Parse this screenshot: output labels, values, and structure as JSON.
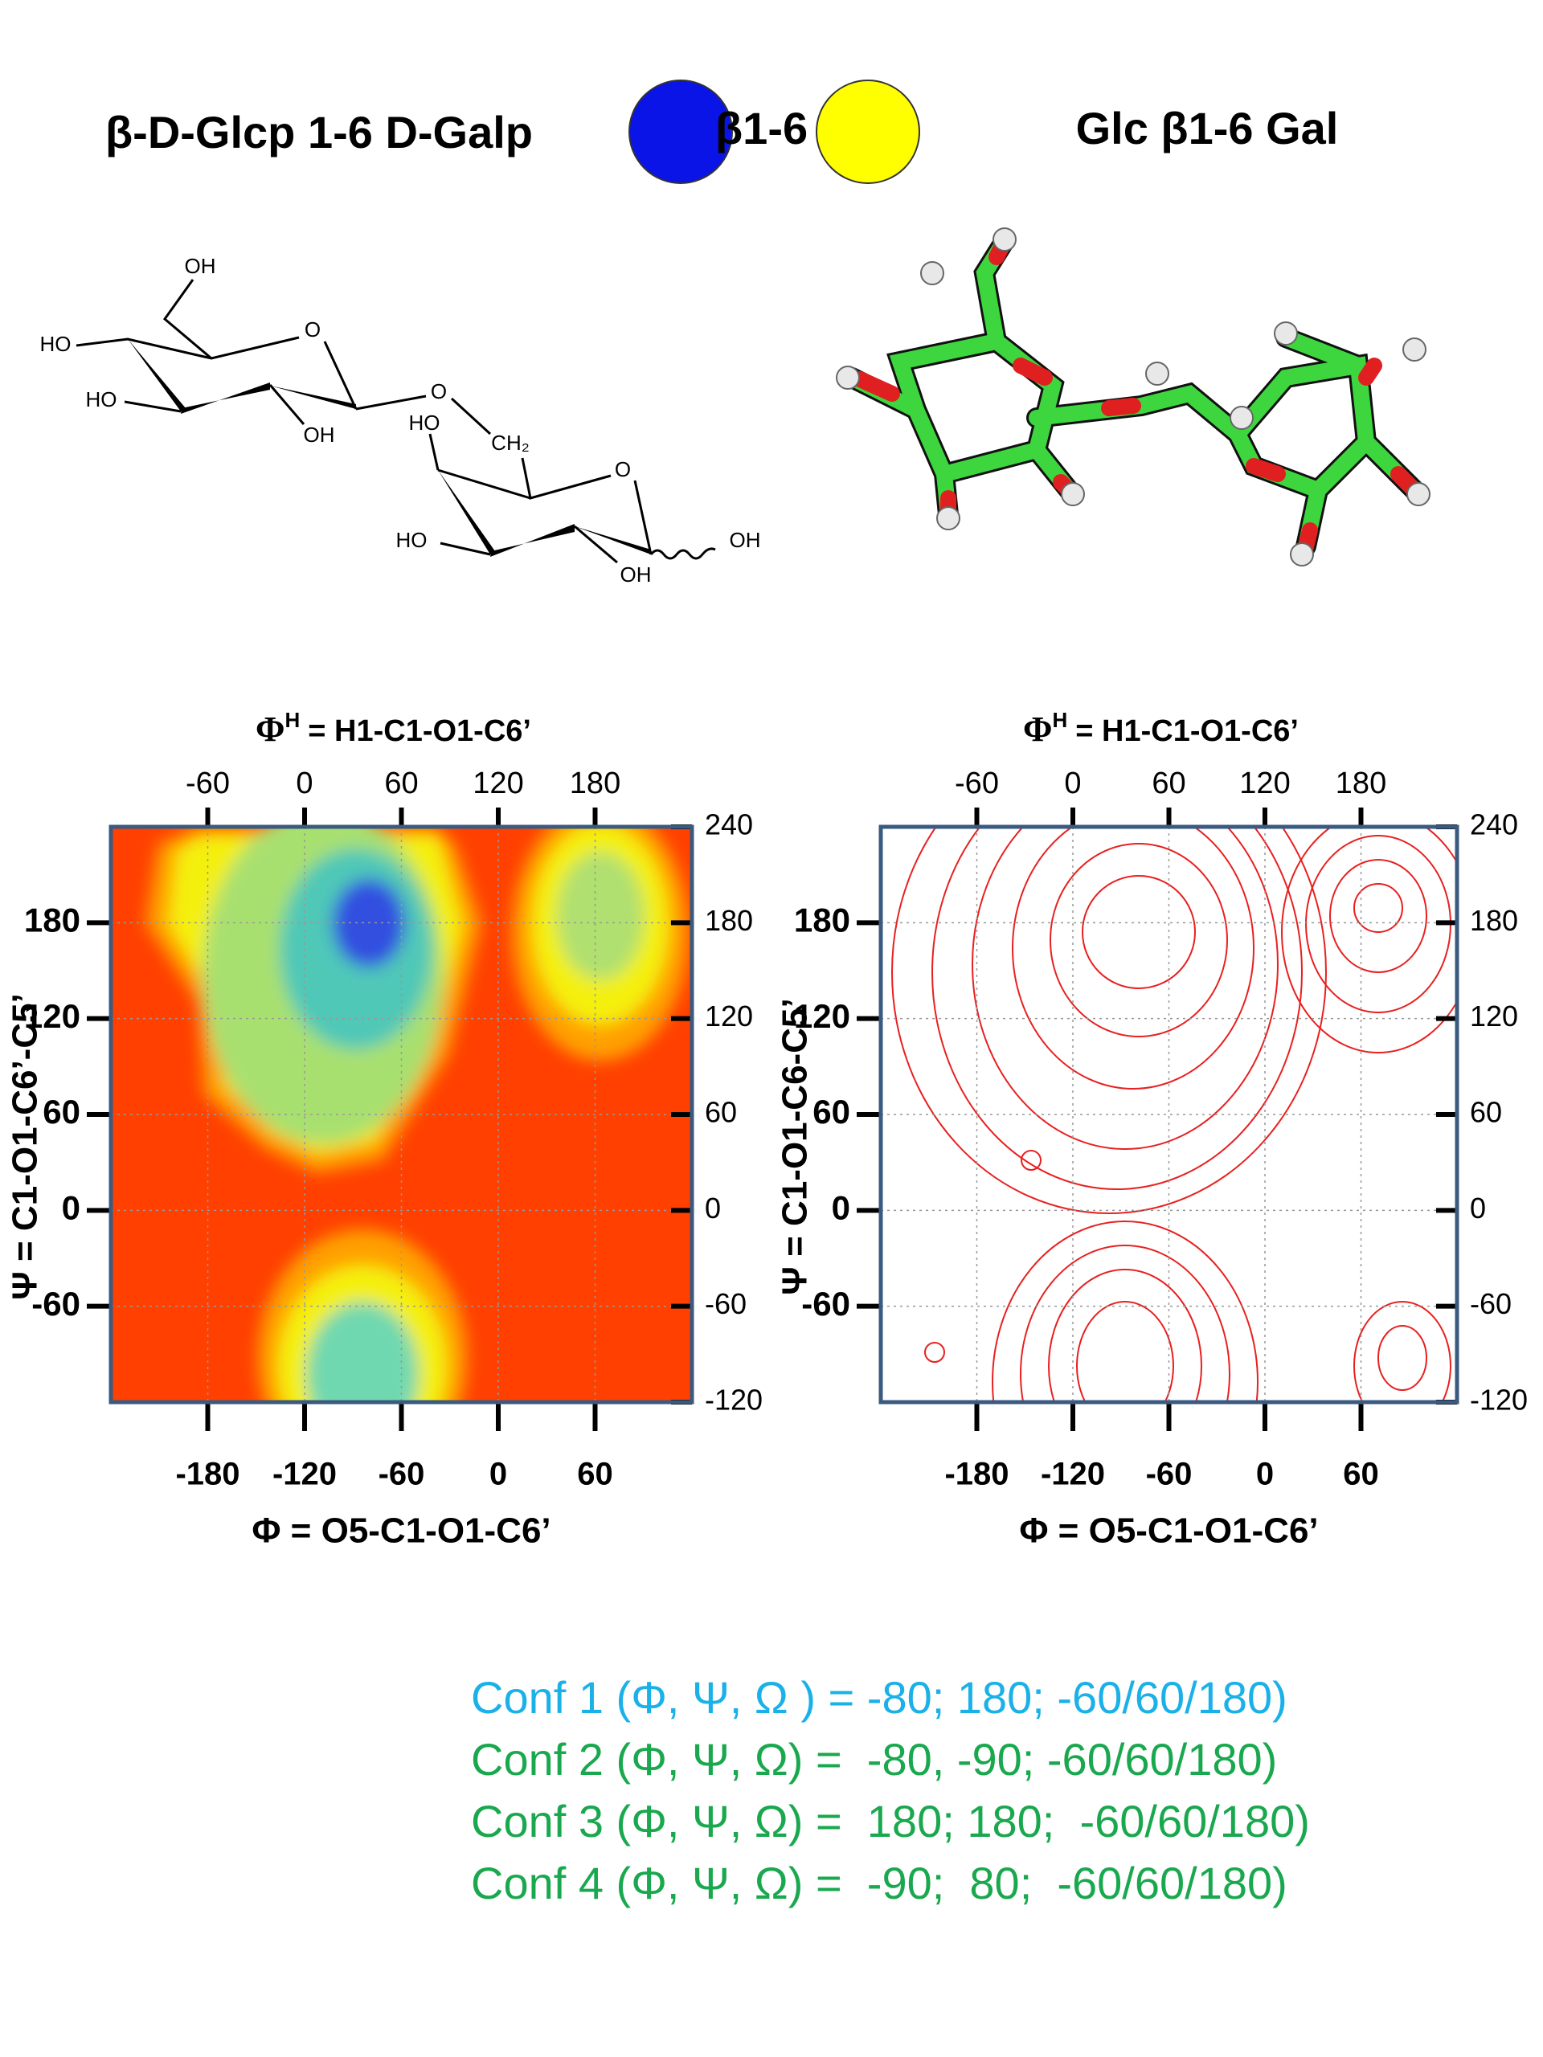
{
  "header": {
    "left": "β-D-Glcp 1-6 D-Galp",
    "linkage": "β1-6",
    "right": "Glc β1-6 Gal"
  },
  "structure": {
    "labels": [
      "OH",
      "HO",
      "O",
      "HO",
      "OH",
      "O",
      "HO",
      "CH₂",
      "O",
      "HO",
      "OH",
      "OH"
    ]
  },
  "plots": [
    {
      "top_title": [
        "Φ",
        "H",
        "= H1-C1-O1-C6’"
      ],
      "x_title": "Φ = O5-C1-O1-C6’",
      "y_title": "Ψ = C1-O1-C6’-C5’",
      "xlim": [
        -240,
        120
      ],
      "ylim": [
        -120,
        240
      ],
      "top_lim": [
        -120,
        240
      ],
      "xticks": [
        -180,
        -120,
        -60,
        0,
        60
      ],
      "top_ticks": [
        -60,
        0,
        60,
        120,
        180
      ],
      "left_ticks": [
        -60,
        0,
        60,
        120,
        180
      ],
      "right_ticks": [
        -120,
        -60,
        0,
        60,
        120,
        180,
        240
      ]
    },
    {
      "top_title": [
        "Φ",
        "H",
        "= H1-C1-O1-C6’"
      ],
      "x_title": "Φ = O5-C1-O1-C6’",
      "y_title": "Ψ = C1-O1-C6-C5’",
      "xlim": [
        -240,
        120
      ],
      "ylim": [
        -120,
        240
      ],
      "top_lim": [
        -120,
        240
      ],
      "xticks": [
        -180,
        -120,
        -60,
        0,
        60
      ],
      "top_ticks": [
        -60,
        0,
        60,
        120,
        180
      ],
      "left_ticks": [
        -60,
        0,
        60,
        120,
        180
      ],
      "right_ticks": [
        -120,
        -60,
        0,
        60,
        120,
        180,
        240
      ]
    }
  ],
  "conformations": [
    "Conf 1 (Φ, Ψ, Ω ) = -80; 180; -60/60/180)",
    "Conf 2 (Φ, Ψ, Ω) =  -80, -90; -60/60/180)",
    "Conf 3 (Φ, Ψ, Ω) =  180; 180;  -60/60/180)",
    "Conf 4 (Φ, Ψ, Ω) =  -90;  80;  -60/60/180)"
  ]
}
